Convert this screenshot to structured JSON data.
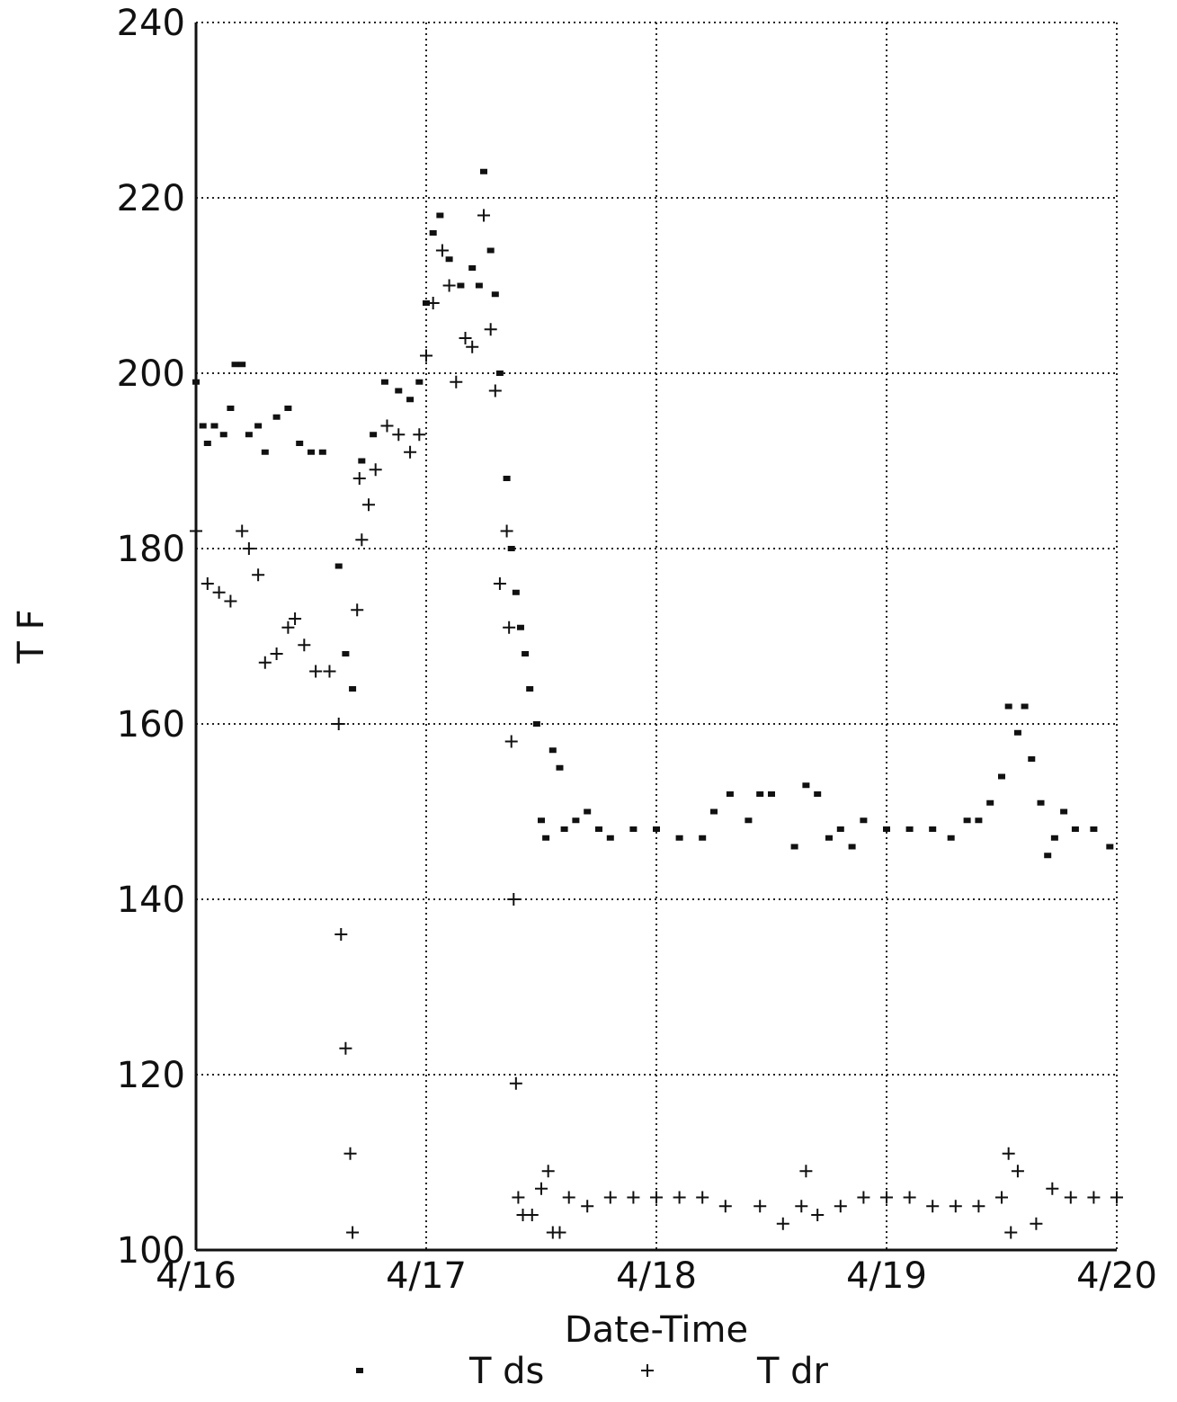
{
  "chart_data": {
    "type": "scatter",
    "xlabel": "Date-Time",
    "ylabel": "T F",
    "xlim": [
      16,
      20
    ],
    "xticks": [
      {
        "value": 16,
        "label": "4/16"
      },
      {
        "value": 17,
        "label": "4/17"
      },
      {
        "value": 18,
        "label": "4/18"
      },
      {
        "value": 19,
        "label": "4/19"
      },
      {
        "value": 20,
        "label": "4/20"
      }
    ],
    "ylim": [
      100,
      240
    ],
    "yticks": [
      100,
      120,
      140,
      160,
      180,
      200,
      220,
      240
    ],
    "grid": true,
    "legend": "bottom",
    "series": [
      {
        "name": "T ds",
        "color": "#111111",
        "marker": "square",
        "x": [
          16.0,
          16.03,
          16.05,
          16.08,
          16.12,
          16.15,
          16.17,
          16.2,
          16.23,
          16.27,
          16.3,
          16.35,
          16.4,
          16.45,
          16.5,
          16.55,
          16.62,
          16.65,
          16.68,
          16.72,
          16.77,
          16.82,
          16.88,
          16.93,
          16.97,
          17.0,
          17.03,
          17.06,
          17.1,
          17.15,
          17.2,
          17.23,
          17.25,
          17.28,
          17.3,
          17.32,
          17.35,
          17.37,
          17.39,
          17.41,
          17.43,
          17.45,
          17.48,
          17.5,
          17.52,
          17.55,
          17.58,
          17.6,
          17.65,
          17.7,
          17.75,
          17.8,
          17.9,
          18.0,
          18.1,
          18.2,
          18.25,
          18.32,
          18.4,
          18.45,
          18.5,
          18.6,
          18.65,
          18.7,
          18.75,
          18.8,
          18.85,
          18.9,
          19.0,
          19.1,
          19.2,
          19.28,
          19.35,
          19.4,
          19.45,
          19.5,
          19.53,
          19.57,
          19.6,
          19.63,
          19.67,
          19.7,
          19.73,
          19.77,
          19.82,
          19.9,
          19.97
        ],
        "values": [
          199,
          194,
          192,
          194,
          193,
          196,
          201,
          201,
          193,
          194,
          191,
          195,
          196,
          192,
          191,
          191,
          178,
          168,
          164,
          190,
          193,
          199,
          198,
          197,
          199,
          208,
          216,
          218,
          213,
          210,
          212,
          210,
          223,
          214,
          209,
          200,
          188,
          180,
          175,
          171,
          168,
          164,
          160,
          149,
          147,
          157,
          155,
          148,
          149,
          150,
          148,
          147,
          148,
          148,
          147,
          147,
          150,
          152,
          149,
          152,
          152,
          146,
          153,
          152,
          147,
          148,
          146,
          149,
          148,
          148,
          148,
          147,
          149,
          149,
          151,
          154,
          162,
          159,
          162,
          156,
          151,
          145,
          147,
          150,
          148,
          148,
          146
        ]
      },
      {
        "name": "T dr",
        "color": "#111111",
        "marker": "plus",
        "x": [
          16.0,
          16.05,
          16.1,
          16.15,
          16.2,
          16.23,
          16.27,
          16.3,
          16.35,
          16.4,
          16.43,
          16.47,
          16.52,
          16.58,
          16.62,
          16.63,
          16.65,
          16.67,
          16.68,
          16.7,
          16.71,
          16.72,
          16.75,
          16.78,
          16.83,
          16.88,
          16.93,
          16.97,
          17.0,
          17.03,
          17.07,
          17.1,
          17.13,
          17.17,
          17.2,
          17.25,
          17.28,
          17.3,
          17.32,
          17.35,
          17.36,
          17.37,
          17.38,
          17.39,
          17.4,
          17.42,
          17.46,
          17.5,
          17.53,
          17.55,
          17.58,
          17.62,
          17.7,
          17.8,
          17.9,
          18.0,
          18.1,
          18.2,
          18.3,
          18.45,
          18.55,
          18.63,
          18.65,
          18.7,
          18.8,
          18.9,
          19.0,
          19.1,
          19.2,
          19.3,
          19.4,
          19.5,
          19.53,
          19.54,
          19.57,
          19.65,
          19.72,
          19.8,
          19.9,
          20.0
        ],
        "values": [
          182,
          176,
          175,
          174,
          182,
          180,
          177,
          167,
          168,
          171,
          172,
          169,
          166,
          166,
          160,
          136,
          123,
          111,
          102,
          173,
          188,
          181,
          185,
          189,
          194,
          193,
          191,
          193,
          202,
          208,
          214,
          210,
          199,
          204,
          203,
          218,
          205,
          198,
          176,
          182,
          171,
          158,
          140,
          119,
          106,
          104,
          104,
          107,
          109,
          102,
          102,
          106,
          105,
          106,
          106,
          106,
          106,
          106,
          105,
          105,
          103,
          105,
          109,
          104,
          105,
          106,
          106,
          106,
          105,
          105,
          105,
          106,
          111,
          102,
          109,
          103,
          107,
          106,
          106,
          106
        ]
      }
    ]
  }
}
